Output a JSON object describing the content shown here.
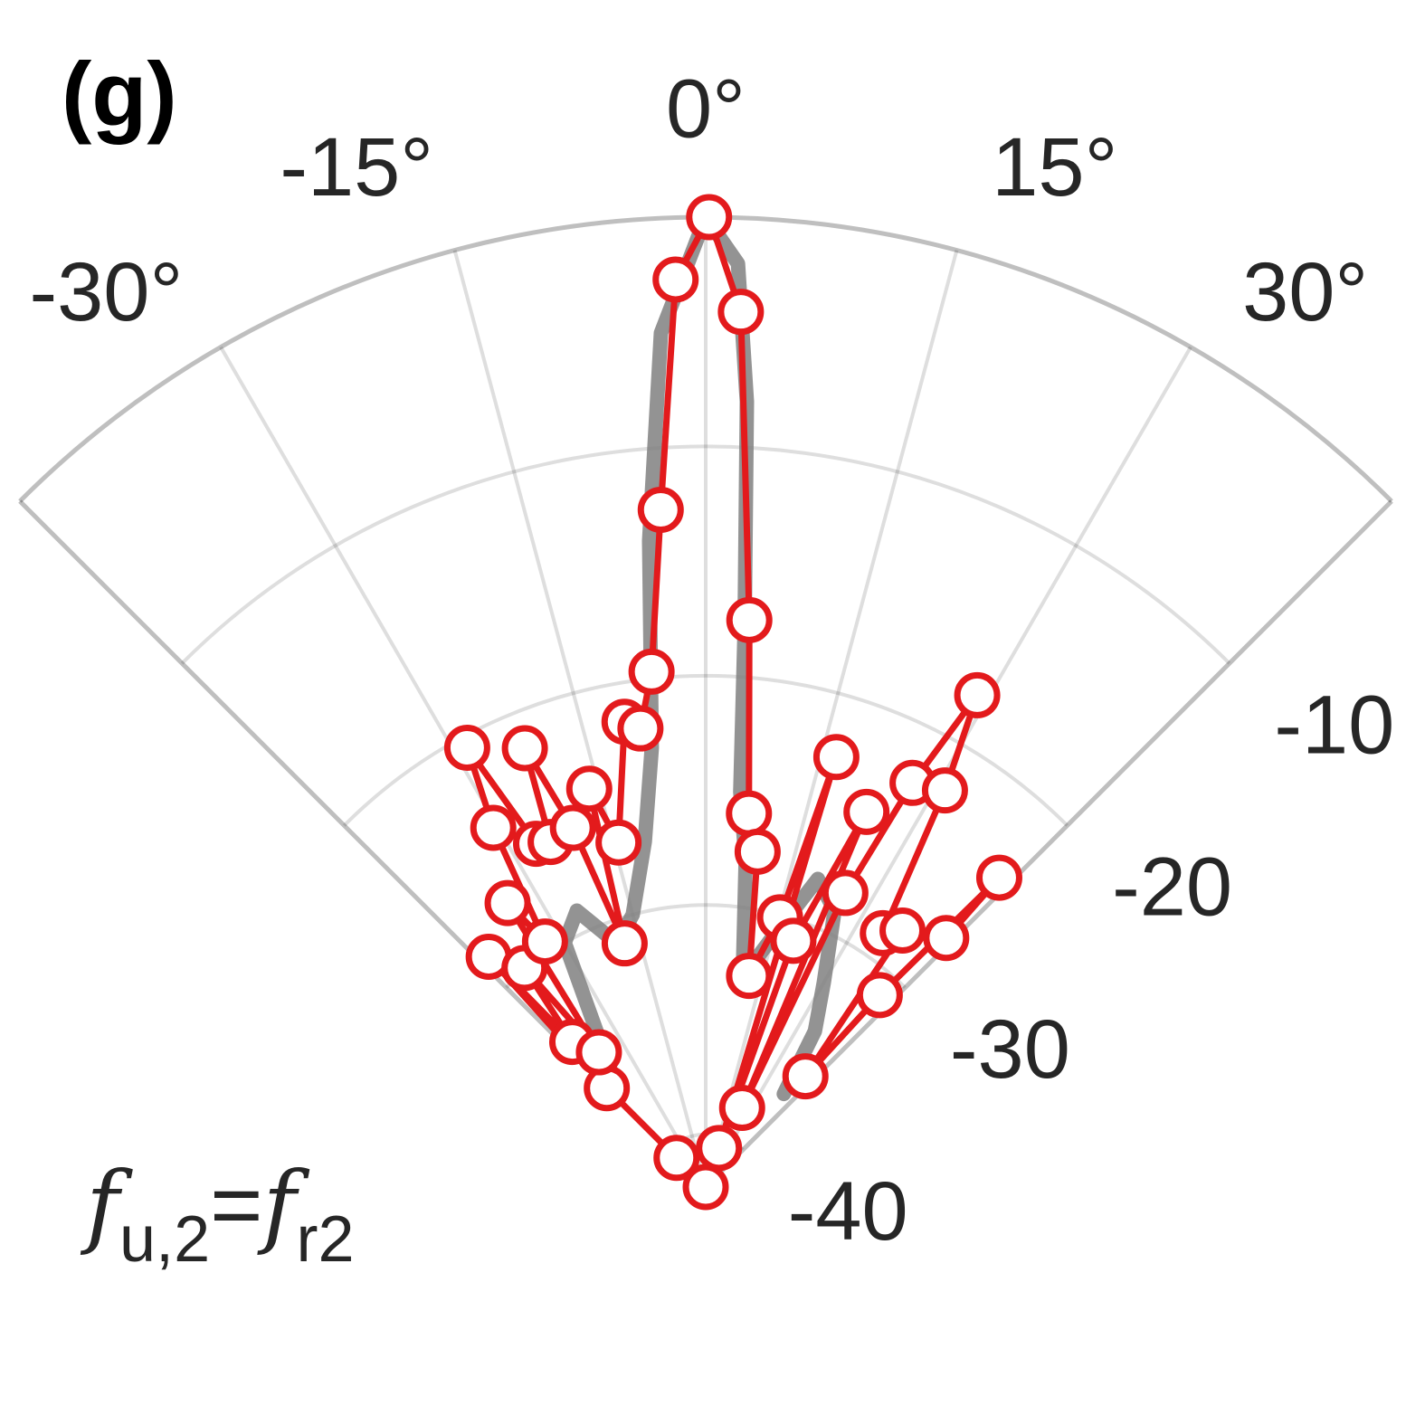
{
  "chart_data": {
    "type": "polar",
    "panel_label": "(g)",
    "annotation": [
      "f",
      "u,2",
      "=",
      "f",
      "r2"
    ],
    "thetalim": [
      -45,
      45
    ],
    "thetaticks": [
      {
        "value": -30,
        "label": "-30°"
      },
      {
        "value": -15,
        "label": "-15°"
      },
      {
        "value": 0,
        "label": "0°"
      },
      {
        "value": 15,
        "label": "15°"
      },
      {
        "value": 30,
        "label": "30°"
      }
    ],
    "rlim": [
      -42.3,
      0
    ],
    "rticks": [
      -40,
      -30,
      -20,
      -10
    ],
    "grid": true,
    "series": [
      {
        "color": "#808080",
        "theta": [
          -40,
          -30,
          -25,
          -20,
          -15,
          -10,
          -7,
          -5,
          -3,
          0,
          2,
          3,
          4,
          5,
          7,
          10,
          15,
          20,
          25,
          30,
          35,
          40
        ],
        "values": [
          -36,
          -30,
          -29,
          -31,
          -30,
          -27,
          -23,
          -14,
          -5,
          0,
          -2,
          -8,
          -18,
          -25,
          -28,
          -33,
          -31,
          -28,
          -29,
          -32,
          -34,
          -37
        ]
      },
      {
        "color": "#e31a1c",
        "marker": "o",
        "theta": [
          0,
          -45,
          -45,
          -43.3,
          -42.6,
          -39.6,
          -38.4,
          -34.9,
          -33.2,
          -30.6,
          -28.5,
          -26.3,
          -24.2,
          -22.4,
          -20.3,
          -18.4,
          -16.3,
          -14.2,
          -9.9,
          -8.1,
          -6.0,
          -3.8,
          -1.9,
          0.2,
          2.3,
          4.4,
          6.6,
          8.8,
          11.6,
          15.4,
          16.9,
          18.8,
          19.6,
          23.2,
          24.7,
          25.4,
          27.1,
          28.9,
          31.1,
          34.9,
          37.5,
          42.0,
          42.2,
          43.5,
          44
        ],
        "values": [
          -42.3,
          -40.5,
          -36.2,
          -28.5,
          -33.7,
          -29.9,
          -34.8,
          -27.2,
          -29.5,
          -24.1,
          -20.5,
          -25.6,
          -25.8,
          -21.6,
          -25.6,
          -31.1,
          -24.2,
          -26.8,
          -21.7,
          -22.1,
          -19.7,
          -12.7,
          -2.7,
          0,
          -4.1,
          -17.5,
          -25.9,
          -27.5,
          -32.9,
          -30.1,
          -22.7,
          -40.5,
          -30.9,
          -24.5,
          -38.5,
          -28.1,
          -22.5,
          -17.8,
          -22.1,
          -28.8,
          -28.2,
          -35.8,
          -31.0,
          -23.7,
          -27.2
        ]
      }
    ]
  }
}
